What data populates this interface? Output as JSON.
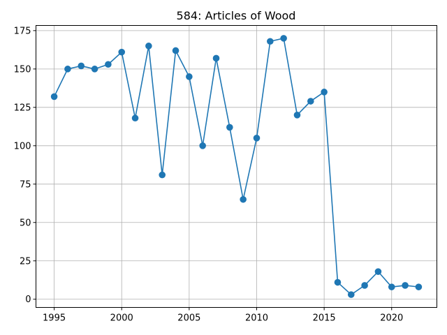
{
  "chart_data": {
    "type": "line",
    "title": "584: Articles of Wood",
    "xlabel": "",
    "ylabel": "",
    "x": [
      1995,
      1996,
      1997,
      1998,
      1999,
      2000,
      2001,
      2002,
      2003,
      2004,
      2005,
      2006,
      2007,
      2008,
      2009,
      2010,
      2011,
      2012,
      2013,
      2014,
      2015,
      2016,
      2017,
      2018,
      2019,
      2020,
      2021,
      2022
    ],
    "series": [
      {
        "name": "584: Articles of Wood",
        "values": [
          132,
          150,
          152,
          150,
          153,
          161,
          118,
          165,
          81,
          162,
          145,
          100,
          157,
          112,
          65,
          105,
          168,
          170,
          120,
          129,
          135,
          11,
          3,
          9,
          18,
          8,
          9,
          8
        ],
        "marker": "circle",
        "color": "#1f77b4"
      }
    ],
    "xlim": [
      1993.65,
      2023.35
    ],
    "ylim": [
      -5.35,
      178.35
    ],
    "xticks": [
      1995,
      2000,
      2005,
      2010,
      2015,
      2020
    ],
    "yticks": [
      0,
      25,
      50,
      75,
      100,
      125,
      150,
      175
    ],
    "grid": true,
    "legend": "none"
  }
}
